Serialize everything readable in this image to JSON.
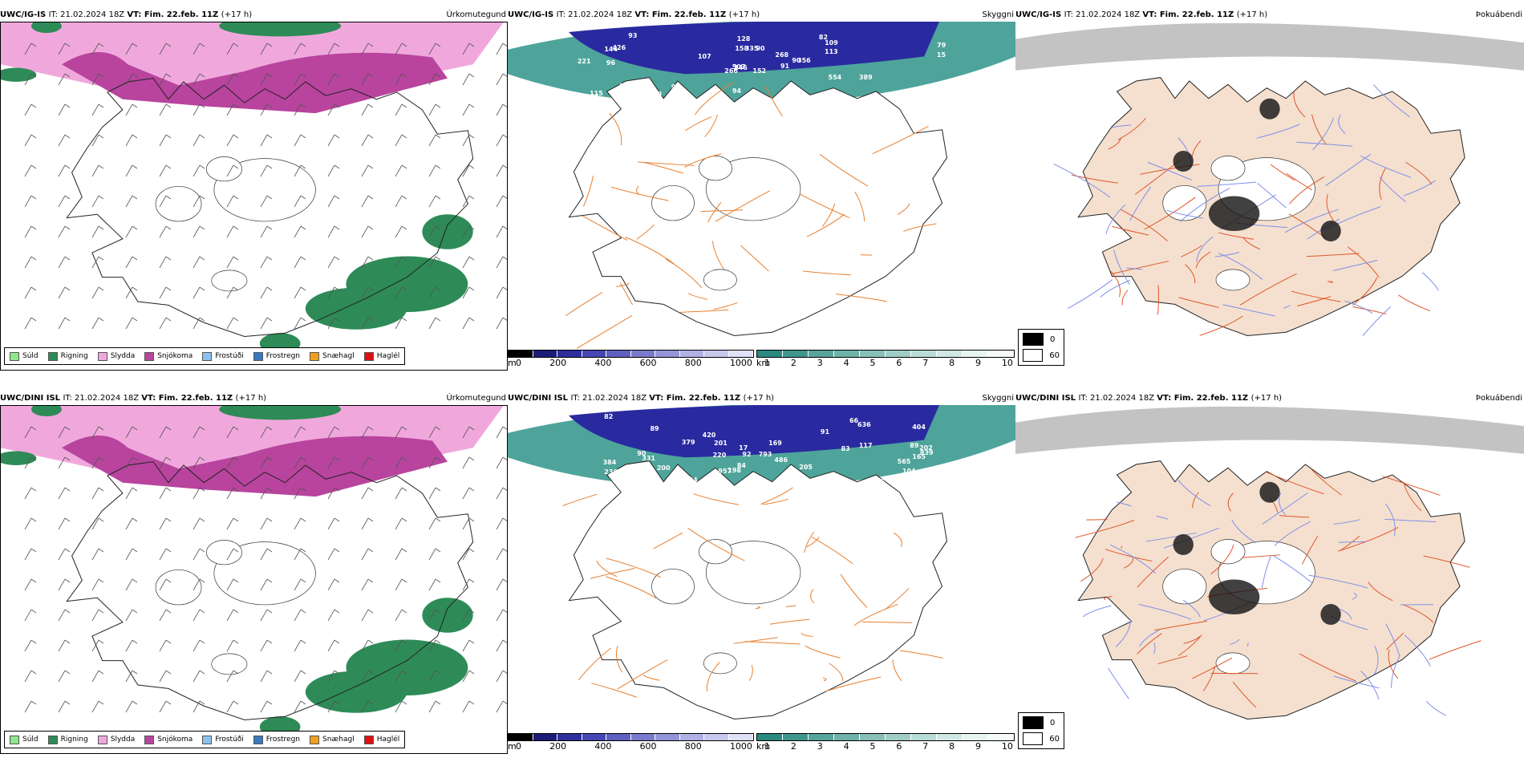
{
  "rows": [
    {
      "model": "UWC/IG-IS",
      "it_label": "IT:",
      "it_value": "21.02.2024 18Z",
      "vt_label": "VT:",
      "vt_value": "Fim. 22.feb. 11Z",
      "lead": "(+17 h)",
      "titles": [
        "Úrkomutegund",
        "Skyggni",
        "Þokuábendi"
      ],
      "cloud_labels": [
        "152",
        "144",
        "146",
        "115",
        "90",
        "96",
        "82",
        "90",
        "109",
        "91",
        "93",
        "97",
        "96",
        "79",
        "266",
        "113",
        "939",
        "158",
        "268",
        "103",
        "107",
        "85",
        "93",
        "335",
        "356",
        "389",
        "426",
        "128",
        "221",
        "554",
        "15",
        "507",
        "94"
      ]
    },
    {
      "model": "UWC/DINI ISL",
      "it_label": "IT:",
      "it_value": "21.02.2024 18Z",
      "vt_label": "VT:",
      "vt_value": "Fim. 22.feb. 11Z",
      "lead": "(+17 h)",
      "titles": [
        "Úrkomutegund",
        "Skyggni",
        "Þokuábendi"
      ],
      "cloud_labels": [
        "169",
        "202",
        "220",
        "205",
        "201",
        "104",
        "89",
        "90",
        "82",
        "66",
        "91",
        "92",
        "84",
        "236",
        "200",
        "83",
        "165",
        "76",
        "565",
        "84",
        "17",
        "331",
        "636",
        "486",
        "384",
        "793",
        "957",
        "404",
        "839",
        "420",
        "89",
        "379",
        "117",
        "198"
      ]
    }
  ],
  "precip_legend": [
    {
      "label": "Súld",
      "color": "#8ee68e"
    },
    {
      "label": "Rigning",
      "color": "#2e8b57"
    },
    {
      "label": "Slydda",
      "color": "#f0a8dc"
    },
    {
      "label": "Snjókoma",
      "color": "#b8449e"
    },
    {
      "label": "Frostúði",
      "color": "#8fc1f0"
    },
    {
      "label": "Frostregn",
      "color": "#3a78c0"
    },
    {
      "label": "Snæhagl",
      "color": "#f0a020"
    },
    {
      "label": "Haglél",
      "color": "#e01010"
    }
  ],
  "cloudbase_bar": {
    "unit": "m",
    "ticks": [
      "0",
      "200",
      "400",
      "600",
      "800",
      "1000"
    ],
    "colors": [
      "#000000",
      "#1c1c78",
      "#2e2e9c",
      "#4646b4",
      "#6060c0",
      "#7a7acc",
      "#9494d8",
      "#b0b0e4",
      "#c8c8ee",
      "#e0e0f6"
    ]
  },
  "visibility_bar": {
    "unit": "km",
    "ticks": [
      "1",
      "2",
      "3",
      "4",
      "5",
      "6",
      "7",
      "8",
      "9",
      "10"
    ],
    "colors": [
      "#2a8a80",
      "#3e968c",
      "#56a49a",
      "#6eb2a8",
      "#88c0b8",
      "#a0cec6",
      "#b8dcd6",
      "#d0e8e4",
      "#e6f4f2",
      "#f6fbfa"
    ]
  },
  "fog_legend": [
    {
      "label": "0",
      "color": "#000000"
    },
    {
      "label": "60",
      "color": "#ffffff"
    }
  ],
  "colors": {
    "snow": "#b8449e",
    "sleet": "#f0a8dc",
    "rain": "#2e8b57",
    "cloudbase": "#2a2aa0",
    "visibility": "#2f9488",
    "roads": "#e87f2e",
    "fog_land": "#f5e0cf",
    "fog_roads": "#e0552a",
    "rivers": "#7f8fe8"
  }
}
